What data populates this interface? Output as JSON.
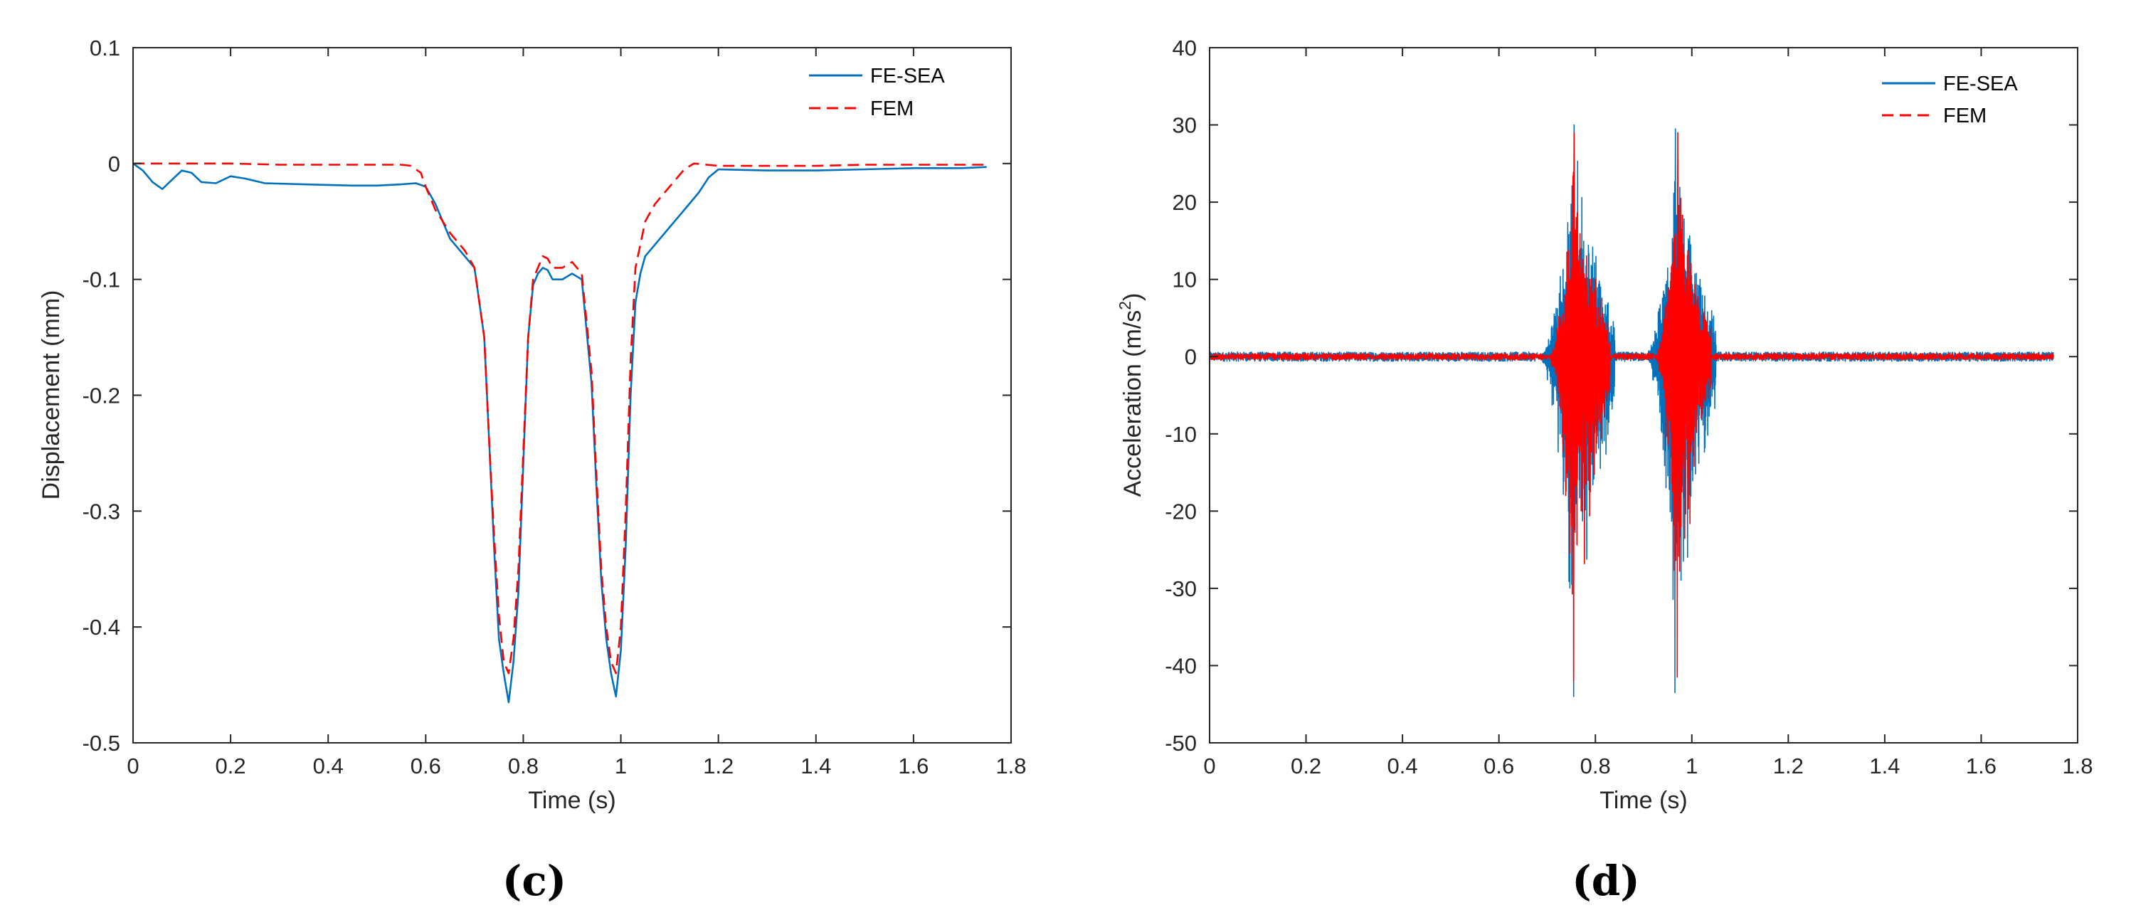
{
  "chart_data": [
    {
      "type": "line",
      "panel_label": "(c)",
      "xlabel": "Time (s)",
      "ylabel": "Displacement (mm)",
      "xlim": [
        0,
        1.8
      ],
      "ylim": [
        -0.5,
        0.1
      ],
      "x_ticks": [
        0,
        0.2,
        0.4,
        0.6,
        0.8,
        1,
        1.2,
        1.4,
        1.6,
        1.8
      ],
      "x_tick_labels": [
        "0",
        "0.2",
        "0.4",
        "0.6",
        "0.8",
        "1",
        "1.2",
        "1.4",
        "1.6",
        "1.8"
      ],
      "y_ticks": [
        -0.5,
        -0.4,
        -0.3,
        -0.2,
        -0.1,
        0,
        0.1
      ],
      "y_tick_labels": [
        "-0.5",
        "-0.4",
        "-0.3",
        "-0.2",
        "-0.1",
        "0",
        "0.1"
      ],
      "grid": false,
      "legend_position": "top-right",
      "series": [
        {
          "name": "FE-SEA",
          "color": "#0072BD",
          "dash": "solid",
          "x": [
            0,
            0.02,
            0.04,
            0.06,
            0.08,
            0.1,
            0.12,
            0.14,
            0.17,
            0.2,
            0.23,
            0.27,
            0.35,
            0.45,
            0.5,
            0.55,
            0.58,
            0.6,
            0.62,
            0.65,
            0.68,
            0.7,
            0.72,
            0.73,
            0.74,
            0.75,
            0.76,
            0.77,
            0.78,
            0.79,
            0.8,
            0.81,
            0.82,
            0.83,
            0.84,
            0.85,
            0.86,
            0.88,
            0.9,
            0.92,
            0.94,
            0.95,
            0.96,
            0.97,
            0.98,
            0.99,
            1.0,
            1.01,
            1.02,
            1.03,
            1.04,
            1.05,
            1.07,
            1.1,
            1.13,
            1.16,
            1.18,
            1.2,
            1.3,
            1.4,
            1.5,
            1.6,
            1.7,
            1.75
          ],
          "y": [
            0,
            -0.006,
            -0.016,
            -0.022,
            -0.014,
            -0.006,
            -0.008,
            -0.016,
            -0.017,
            -0.011,
            -0.013,
            -0.017,
            -0.018,
            -0.019,
            -0.019,
            -0.018,
            -0.017,
            -0.02,
            -0.035,
            -0.065,
            -0.08,
            -0.09,
            -0.15,
            -0.24,
            -0.33,
            -0.41,
            -0.44,
            -0.465,
            -0.43,
            -0.37,
            -0.26,
            -0.15,
            -0.105,
            -0.095,
            -0.09,
            -0.092,
            -0.1,
            -0.1,
            -0.095,
            -0.1,
            -0.19,
            -0.28,
            -0.36,
            -0.41,
            -0.44,
            -0.46,
            -0.42,
            -0.33,
            -0.2,
            -0.12,
            -0.095,
            -0.08,
            -0.07,
            -0.055,
            -0.04,
            -0.025,
            -0.012,
            -0.005,
            -0.006,
            -0.006,
            -0.005,
            -0.004,
            -0.004,
            -0.003
          ]
        },
        {
          "name": "FEM",
          "color": "#FF0000",
          "dash": "dashed",
          "x": [
            0,
            0.1,
            0.2,
            0.3,
            0.4,
            0.5,
            0.55,
            0.57,
            0.59,
            0.6,
            0.62,
            0.65,
            0.68,
            0.7,
            0.72,
            0.73,
            0.74,
            0.75,
            0.76,
            0.77,
            0.78,
            0.79,
            0.8,
            0.81,
            0.82,
            0.83,
            0.84,
            0.85,
            0.86,
            0.88,
            0.9,
            0.92,
            0.94,
            0.95,
            0.96,
            0.97,
            0.98,
            0.99,
            1.0,
            1.01,
            1.02,
            1.03,
            1.05,
            1.07,
            1.1,
            1.13,
            1.15,
            1.2,
            1.3,
            1.4,
            1.5,
            1.6,
            1.7,
            1.75
          ],
          "y": [
            0,
            0,
            0,
            -0.001,
            -0.001,
            -0.001,
            -0.001,
            -0.002,
            -0.008,
            -0.02,
            -0.04,
            -0.06,
            -0.075,
            -0.09,
            -0.15,
            -0.24,
            -0.32,
            -0.39,
            -0.43,
            -0.44,
            -0.41,
            -0.35,
            -0.25,
            -0.15,
            -0.1,
            -0.09,
            -0.08,
            -0.082,
            -0.09,
            -0.09,
            -0.085,
            -0.095,
            -0.18,
            -0.27,
            -0.35,
            -0.4,
            -0.43,
            -0.44,
            -0.4,
            -0.3,
            -0.17,
            -0.09,
            -0.05,
            -0.035,
            -0.02,
            -0.005,
            0,
            -0.002,
            -0.002,
            -0.002,
            -0.001,
            -0.001,
            -0.001,
            -0.001
          ]
        }
      ]
    },
    {
      "type": "line",
      "panel_label": "(d)",
      "xlabel": "Time (s)",
      "ylabel": "Acceleration (m/s",
      "ylabel_superscript": "2",
      "ylabel_close": ")",
      "xlim": [
        0,
        1.8
      ],
      "ylim": [
        -50,
        40
      ],
      "x_ticks": [
        0,
        0.2,
        0.4,
        0.6,
        0.8,
        1,
        1.2,
        1.4,
        1.6,
        1.8
      ],
      "x_tick_labels": [
        "0",
        "0.2",
        "0.4",
        "0.6",
        "0.8",
        "1",
        "1.2",
        "1.4",
        "1.6",
        "1.8"
      ],
      "y_ticks": [
        -50,
        -40,
        -30,
        -20,
        -10,
        0,
        10,
        20,
        30,
        40
      ],
      "y_tick_labels": [
        "-50",
        "-40",
        "-30",
        "-20",
        "-10",
        "0",
        "10",
        "20",
        "30",
        "40"
      ],
      "grid": false,
      "legend_position": "top-right",
      "series": [
        {
          "name": "FE-SEA",
          "color": "#0072BD",
          "dash": "solid",
          "x_range": [
            0,
            1.75
          ],
          "baseline_amplitude": 0.6,
          "bursts": [
            {
              "start": 0.68,
              "center": 0.755,
              "end": 0.84,
              "max": 30,
              "min": -44
            },
            {
              "start": 0.9,
              "center": 0.965,
              "end": 1.05,
              "max": 29.5,
              "min": -43.5
            }
          ]
        },
        {
          "name": "FEM",
          "color": "#FF0000",
          "dash": "dashed",
          "x_range": [
            0,
            1.75
          ],
          "baseline_amplitude": 0.4,
          "bursts": [
            {
              "start": 0.7,
              "center": 0.755,
              "end": 0.83,
              "max": 29,
              "min": -42
            },
            {
              "start": 0.92,
              "center": 0.97,
              "end": 1.04,
              "max": 29,
              "min": -41.5
            }
          ]
        }
      ]
    }
  ]
}
